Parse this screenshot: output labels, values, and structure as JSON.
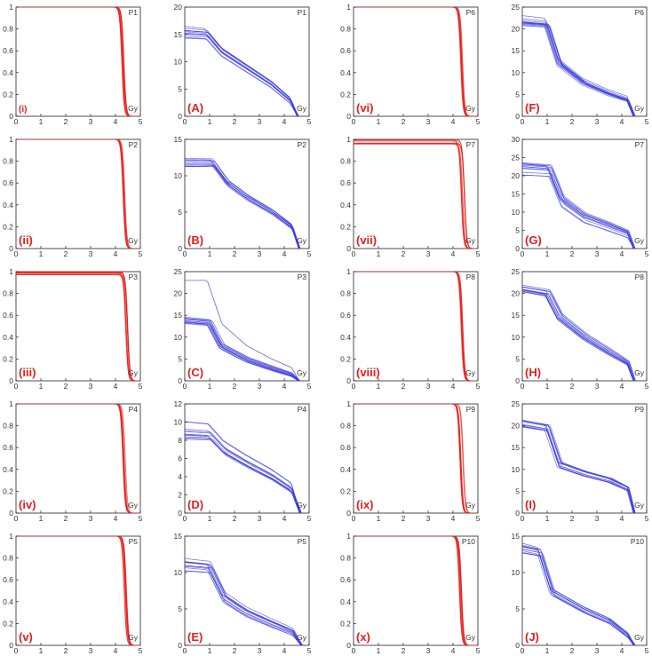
{
  "colors": {
    "red": "#e8201c",
    "blue": "#3b3bdc",
    "tag": "#e02020",
    "axis": "#222222"
  },
  "chart_data": {
    "type": "line",
    "xlabel": "Gy",
    "xlim": [
      0,
      5
    ],
    "x_ticks": [
      "0",
      "1",
      "2",
      "3",
      "4",
      "5"
    ],
    "panels": [
      {
        "id": "r1",
        "tag": "(i)",
        "patient": "P1",
        "color": "red",
        "ylim": [
          0,
          1
        ],
        "y_ticks": [
          "0",
          "0.2",
          "0.4",
          "0.6",
          "0.8",
          "1"
        ],
        "col": 0,
        "row": 0,
        "kind": "steep",
        "n": 10,
        "x_drop": 4.3,
        "width": 0.12,
        "y_start": [
          1.0,
          1.0
        ]
      },
      {
        "id": "b1",
        "tag": "(A)",
        "patient": "P1",
        "color": "blue",
        "ylim": [
          0,
          20
        ],
        "y_ticks": [
          "0",
          "5",
          "10",
          "15",
          "20"
        ],
        "col": 1,
        "row": 0,
        "kind": "blue",
        "n": 12,
        "knots_x": [
          0,
          0.9,
          1.5,
          2.5,
          3.5,
          4.25,
          4.55
        ],
        "knots_y": [
          15.5,
          15.2,
          12.0,
          9.0,
          6.0,
          3.0,
          0
        ],
        "spread": 1.2
      },
      {
        "id": "r2",
        "tag": "(vi)",
        "patient": "P6",
        "color": "red",
        "ylim": [
          0,
          1
        ],
        "y_ticks": [
          "0",
          "0.2",
          "0.4",
          "0.6",
          "0.8",
          "1"
        ],
        "col": 2,
        "row": 0,
        "kind": "steep",
        "n": 10,
        "x_drop": 4.35,
        "width": 0.1,
        "y_start": [
          1.0,
          1.0
        ]
      },
      {
        "id": "b2",
        "tag": "(F)",
        "patient": "P6",
        "color": "blue",
        "ylim": [
          0,
          25
        ],
        "y_ticks": [
          "0",
          "5",
          "10",
          "15",
          "20",
          "25"
        ],
        "col": 3,
        "row": 0,
        "kind": "blue",
        "n": 12,
        "knots_x": [
          0,
          1.0,
          1.5,
          2.5,
          3.5,
          4.25,
          4.5
        ],
        "knots_y": [
          22.0,
          21.5,
          12.5,
          8.0,
          5.5,
          4.0,
          0
        ],
        "spread": 1.5
      },
      {
        "id": "r3",
        "tag": "(ii)",
        "patient": "P2",
        "color": "red",
        "ylim": [
          0,
          1
        ],
        "y_ticks": [
          "0",
          "0.2",
          "0.4",
          "0.6",
          "0.8",
          "1"
        ],
        "col": 0,
        "row": 1,
        "kind": "steep",
        "n": 10,
        "x_drop": 4.35,
        "width": 0.12,
        "y_start": [
          1.0,
          1.0
        ]
      },
      {
        "id": "b3",
        "tag": "(B)",
        "patient": "P2",
        "color": "blue",
        "ylim": [
          0,
          15
        ],
        "y_ticks": [
          "0",
          "5",
          "10",
          "15"
        ],
        "col": 1,
        "row": 1,
        "kind": "blue",
        "n": 12,
        "knots_x": [
          0,
          1.1,
          1.7,
          2.5,
          3.5,
          4.3,
          4.6
        ],
        "knots_y": [
          11.8,
          11.8,
          9.0,
          7.0,
          5.0,
          3.0,
          0
        ],
        "spread": 0.6
      },
      {
        "id": "r4",
        "tag": "(vii)",
        "patient": "P7",
        "color": "red",
        "ylim": [
          0,
          1
        ],
        "y_ticks": [
          "0",
          "0.2",
          "0.4",
          "0.6",
          "0.8",
          "1"
        ],
        "col": 2,
        "row": 1,
        "kind": "steep",
        "n": 10,
        "x_drop": 4.4,
        "width": 0.15,
        "y_start": [
          1.0,
          0.95
        ]
      },
      {
        "id": "b4",
        "tag": "(G)",
        "patient": "P7",
        "color": "blue",
        "ylim": [
          0,
          30
        ],
        "y_ticks": [
          "0",
          "5",
          "10",
          "15",
          "20",
          "25",
          "30"
        ],
        "col": 3,
        "row": 1,
        "kind": "blue",
        "n": 12,
        "knots_x": [
          0,
          1.1,
          1.6,
          2.5,
          3.5,
          4.25,
          4.5
        ],
        "knots_y": [
          22.0,
          21.5,
          13.0,
          8.5,
          6.0,
          4.0,
          0
        ],
        "spread": 2.0
      },
      {
        "id": "r5",
        "tag": "(iii)",
        "patient": "P3",
        "color": "red",
        "ylim": [
          0,
          1
        ],
        "y_ticks": [
          "0",
          "0.2",
          "0.4",
          "0.6",
          "0.8",
          "1"
        ],
        "col": 0,
        "row": 2,
        "kind": "steep",
        "n": 10,
        "x_drop": 4.45,
        "width": 0.15,
        "y_start": [
          1.0,
          0.97
        ]
      },
      {
        "id": "b5",
        "tag": "(C)",
        "patient": "P3",
        "color": "blue",
        "ylim": [
          0,
          25
        ],
        "y_ticks": [
          "0",
          "5",
          "10",
          "15",
          "20",
          "25"
        ],
        "col": 1,
        "row": 2,
        "kind": "blue",
        "n": 12,
        "knots_x": [
          0,
          1.0,
          1.5,
          2.5,
          3.5,
          4.3,
          4.6
        ],
        "knots_y": [
          14.0,
          13.5,
          8.0,
          5.0,
          3.0,
          1.5,
          0
        ],
        "spread": 1.0,
        "outlier": {
          "knots_x": [
            0,
            0.9,
            1.5,
            2.5,
            3.5,
            4.3,
            4.6
          ],
          "knots_y": [
            23.0,
            23.0,
            13.0,
            8.0,
            5.0,
            3.0,
            0
          ]
        }
      },
      {
        "id": "r6",
        "tag": "(viii)",
        "patient": "P8",
        "color": "red",
        "ylim": [
          0,
          1
        ],
        "y_ticks": [
          "0",
          "0.2",
          "0.4",
          "0.6",
          "0.8",
          "1"
        ],
        "col": 2,
        "row": 2,
        "kind": "steep",
        "n": 10,
        "x_drop": 4.35,
        "width": 0.1,
        "y_start": [
          1.0,
          1.0
        ]
      },
      {
        "id": "b6",
        "tag": "(H)",
        "patient": "P8",
        "color": "blue",
        "ylim": [
          0,
          25
        ],
        "y_ticks": [
          "0",
          "5",
          "10",
          "15",
          "20",
          "25"
        ],
        "col": 3,
        "row": 2,
        "kind": "blue",
        "n": 12,
        "knots_x": [
          0,
          1.0,
          1.5,
          2.5,
          3.5,
          4.25,
          4.5
        ],
        "knots_y": [
          21.0,
          20.0,
          14.5,
          10.0,
          6.5,
          4.0,
          0
        ],
        "spread": 1.0
      },
      {
        "id": "r7",
        "tag": "(iv)",
        "patient": "P4",
        "color": "red",
        "ylim": [
          0,
          1
        ],
        "y_ticks": [
          "0",
          "0.2",
          "0.4",
          "0.6",
          "0.8",
          "1"
        ],
        "col": 0,
        "row": 3,
        "kind": "steep",
        "n": 10,
        "x_drop": 4.35,
        "width": 0.12,
        "y_start": [
          1.0,
          1.0
        ]
      },
      {
        "id": "b7",
        "tag": "(D)",
        "patient": "P4",
        "color": "blue",
        "ylim": [
          0,
          12
        ],
        "y_ticks": [
          "0",
          "2",
          "4",
          "6",
          "8",
          "10",
          "12"
        ],
        "col": 1,
        "row": 3,
        "kind": "blue",
        "n": 12,
        "knots_x": [
          0,
          1.0,
          1.6,
          2.5,
          3.5,
          4.3,
          4.65
        ],
        "knots_y": [
          9.5,
          9.3,
          7.5,
          6.0,
          4.5,
          3.0,
          0
        ],
        "spread": 1.4
      },
      {
        "id": "r8",
        "tag": "(ix)",
        "patient": "P9",
        "color": "red",
        "ylim": [
          0,
          1
        ],
        "y_ticks": [
          "0",
          "0.2",
          "0.4",
          "0.6",
          "0.8",
          "1"
        ],
        "col": 2,
        "row": 3,
        "kind": "steep",
        "n": 10,
        "x_drop": 4.35,
        "width": 0.18,
        "y_start": [
          1.0,
          1.0
        ]
      },
      {
        "id": "b8",
        "tag": "(I)",
        "patient": "P9",
        "color": "blue",
        "ylim": [
          0,
          25
        ],
        "y_ticks": [
          "0",
          "5",
          "10",
          "15",
          "20",
          "25"
        ],
        "col": 3,
        "row": 3,
        "kind": "blue",
        "n": 12,
        "knots_x": [
          0,
          1.0,
          1.5,
          2.5,
          3.5,
          4.25,
          4.5
        ],
        "knots_y": [
          20.5,
          19.5,
          11.0,
          9.0,
          7.5,
          5.5,
          0
        ],
        "spread": 0.8
      },
      {
        "id": "r9",
        "tag": "(v)",
        "patient": "P5",
        "color": "red",
        "ylim": [
          0,
          1
        ],
        "y_ticks": [
          "0",
          "0.2",
          "0.4",
          "0.6",
          "0.8",
          "1"
        ],
        "col": 0,
        "row": 4,
        "kind": "steep",
        "n": 10,
        "x_drop": 4.4,
        "width": 0.12,
        "y_start": [
          1.0,
          1.0
        ]
      },
      {
        "id": "b9",
        "tag": "(E)",
        "patient": "P5",
        "color": "blue",
        "ylim": [
          0,
          15
        ],
        "y_ticks": [
          "0",
          "5",
          "10",
          "15"
        ],
        "col": 1,
        "row": 4,
        "kind": "blue",
        "n": 12,
        "knots_x": [
          0,
          1.0,
          1.6,
          2.5,
          3.5,
          4.35,
          4.7
        ],
        "knots_y": [
          11.0,
          10.7,
          6.5,
          4.5,
          3.0,
          1.8,
          0
        ],
        "spread": 1.0
      },
      {
        "id": "r10",
        "tag": "(x)",
        "patient": "P10",
        "color": "red",
        "ylim": [
          0,
          1
        ],
        "y_ticks": [
          "0",
          "0.2",
          "0.4",
          "0.6",
          "0.8",
          "1"
        ],
        "col": 2,
        "row": 4,
        "kind": "steep",
        "n": 10,
        "x_drop": 4.3,
        "width": 0.1,
        "y_start": [
          1.0,
          1.0
        ]
      },
      {
        "id": "b10",
        "tag": "(J)",
        "patient": "P10",
        "color": "blue",
        "ylim": [
          0,
          15
        ],
        "y_ticks": [
          "0",
          "5",
          "10",
          "15"
        ],
        "col": 3,
        "row": 4,
        "kind": "blue",
        "n": 12,
        "knots_x": [
          0,
          0.7,
          1.2,
          2.5,
          3.5,
          4.25,
          4.5
        ],
        "knots_y": [
          13.5,
          13.0,
          7.5,
          5.0,
          3.5,
          1.5,
          0
        ],
        "spread": 0.9
      }
    ]
  }
}
